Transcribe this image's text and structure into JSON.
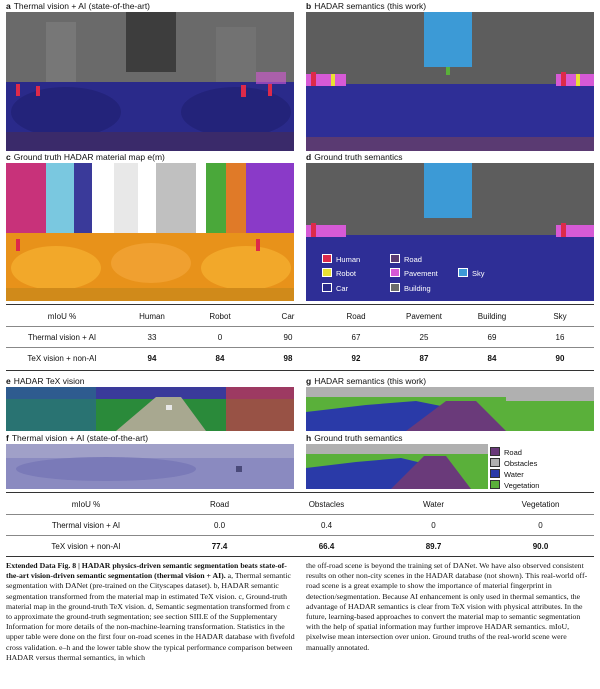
{
  "panels": {
    "a": {
      "letter": "a",
      "title": "Thermal vision + AI (state-of-the-art)"
    },
    "b": {
      "letter": "b",
      "title": "HADAR semantics (this work)"
    },
    "c": {
      "letter": "c",
      "title": "Ground truth HADAR material map e(m)"
    },
    "d": {
      "letter": "d",
      "title": "Ground truth semantics"
    },
    "e": {
      "letter": "e",
      "title": "HADAR TeX vision"
    },
    "f": {
      "letter": "f",
      "title": "Thermal vision + AI (state-of-the-art)"
    },
    "g": {
      "letter": "g",
      "title": "HADAR semantics (this work)"
    },
    "h": {
      "letter": "h",
      "title": "Ground truth semantics"
    }
  },
  "legend_city": [
    {
      "label": "Human",
      "color": "#dd2a4a"
    },
    {
      "label": "Road",
      "color": "#5a3a72"
    },
    {
      "label": "Robot",
      "color": "#e8e033"
    },
    {
      "label": "Pavement",
      "color": "#d65ad6"
    },
    {
      "label": "Sky",
      "color": "#3c9ad6"
    },
    {
      "label": "Car",
      "color": "#2a2a8a"
    },
    {
      "label": "Building",
      "color": "#6b6b6b"
    }
  ],
  "legend_offroad": [
    {
      "label": "Road",
      "color": "#6a3a7a"
    },
    {
      "label": "Obstacles",
      "color": "#b0b0b0"
    },
    {
      "label": "Water",
      "color": "#2a3aa8"
    },
    {
      "label": "Vegetation",
      "color": "#5ab03a"
    }
  ],
  "table1": {
    "header": [
      "mIoU %",
      "Human",
      "Robot",
      "Car",
      "Road",
      "Pavement",
      "Building",
      "Sky"
    ],
    "rows": [
      {
        "label": "Thermal vision + AI",
        "values": [
          "33",
          "0",
          "90",
          "67",
          "25",
          "69",
          "16"
        ]
      },
      {
        "label": "TeX vision + non-AI",
        "values": [
          "94",
          "84",
          "98",
          "92",
          "87",
          "84",
          "90"
        ]
      }
    ]
  },
  "table2": {
    "header": [
      "mIoU %",
      "Road",
      "Obstacles",
      "Water",
      "Vegetation"
    ],
    "rows": [
      {
        "label": "Thermal vision + AI",
        "values": [
          "0.0",
          "0.4",
          "0",
          "0"
        ]
      },
      {
        "label": "TeX vision + non-AI",
        "values": [
          "77.4",
          "66.4",
          "89.7",
          "90.0"
        ]
      }
    ]
  },
  "caption": {
    "title": "Extended Data Fig. 8 | HADAR physics-driven semantic segmentation beats state-of-the-art vision-driven semantic segmentation (thermal vision + AI).",
    "left_text": "a, Thermal semantic segmentation with DANet (pre-trained on the Cityscapes dataset). b, HADAR semantic segmentation transformed from the material map in estimated TeX vision. c, Ground-truth material map in the ground-truth TeX vision. d, Semantic segmentation transformed from c to approximate the ground-truth segmentation; see section SIII.E of the Supplementary Information for more details of the non-machine-learning transformation. Statistics in the upper table were done on the first four on-road scenes in the HADAR database with fivefold cross validation. e–h and the lower table show the typical performance comparison between HADAR versus thermal semantics, in which",
    "right_text": "the off-road scene is beyond the training set of DANet. We have also observed consistent results on other non-city scenes in the HADAR database (not shown). This real-world off-road scene is a great example to show the importance of material fingerprint in detection/segmentation. Because AI enhancement is only used in thermal semantics, the advantage of HADAR semantics is clear from TeX vision with physical attributes. In the future, learning-based approaches to convert the material map to semantic segmentation with the help of spatial information may further improve HADAR semantics. mIoU, pixelwise mean intersection over union. Ground truths of the real-world scene were manually annotated."
  }
}
